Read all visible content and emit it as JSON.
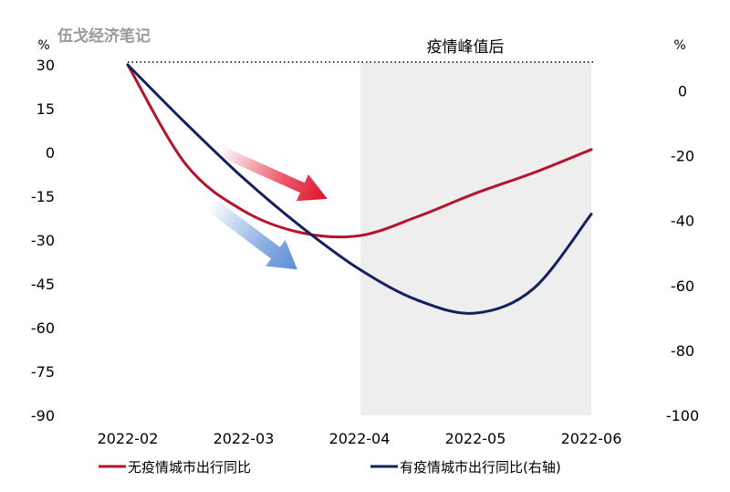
{
  "chart_data": {
    "type": "line",
    "watermark": "伍戈经济笔记",
    "shaded_region": {
      "label": "疫情峰值后",
      "from": "2022-04",
      "to": "2022-06"
    },
    "categories": [
      "2022-02",
      "2022-03",
      "2022-04",
      "2022-05",
      "2022-06"
    ],
    "left_axis": {
      "unit": "%",
      "ticks": [
        "30",
        "15",
        "0",
        "-15",
        "-30",
        "-45",
        "-60",
        "-75",
        "-90"
      ],
      "ylim": [
        -90,
        30
      ]
    },
    "right_axis": {
      "unit": "%",
      "ticks": [
        "0",
        "-20",
        "-40",
        "-60",
        "-80",
        "-100"
      ],
      "ylim": [
        -100,
        8
      ]
    },
    "series": [
      {
        "name": "无疫情城市出行同比",
        "axis": "left",
        "color": "#b5132b",
        "x": [
          0,
          0.5,
          1,
          1.5,
          2,
          2.5,
          3,
          3.5,
          4
        ],
        "values": [
          30,
          -4,
          -20,
          -27.5,
          -28.5,
          -22,
          -14,
          -7,
          1
        ]
      },
      {
        "name": "有疫情城市出行同比(右轴)",
        "axis": "right",
        "color": "#14215e",
        "x": [
          0,
          0.5,
          1,
          1.5,
          2,
          2.5,
          3,
          3.5,
          4
        ],
        "values": [
          8,
          -10,
          -27,
          -42,
          -55,
          -64.5,
          -68.5,
          -61,
          -38
        ]
      }
    ],
    "legend": [
      "无疫情城市出行同比",
      "有疫情城市出行同比(右轴)"
    ],
    "legend_position": "bottom",
    "reference_line": {
      "style": "dotted",
      "y": 30,
      "axis": "left"
    }
  }
}
